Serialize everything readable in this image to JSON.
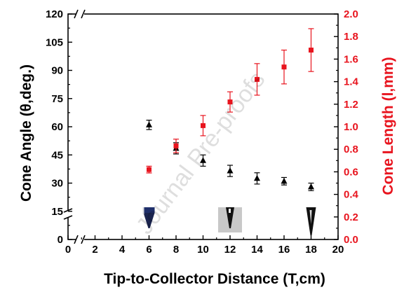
{
  "chart_data": {
    "type": "scatter",
    "xlabel": "Tip-to-Collector Distance (T,cm)",
    "ylabel_left": "Cone Angle (θ,deg.)",
    "ylabel_right": "Cone Length (l,mm)",
    "xlim": [
      0,
      20
    ],
    "x_ticks": [
      0,
      2,
      4,
      6,
      8,
      10,
      12,
      14,
      16,
      18,
      20
    ],
    "ylim_left": [
      0,
      120
    ],
    "y_ticks_left": [
      0,
      15,
      30,
      45,
      60,
      75,
      90,
      105,
      120
    ],
    "ylim_right": [
      0,
      2.0
    ],
    "y_ticks_right": [
      "0.0",
      "0.2",
      "0.4",
      "0.6",
      "0.8",
      "1.0",
      "1.2",
      "1.4",
      "1.6",
      "1.8",
      "2.0"
    ],
    "axis_break_x": true,
    "axis_break_y": true,
    "grid": false,
    "watermark": "Journal Pre-proofs",
    "colors": {
      "left_axis": "#000000",
      "right_axis": "#e8141e",
      "series_angle": "#000000",
      "series_length": "#e8141e"
    },
    "series": [
      {
        "axis": "left",
        "marker": "triangle",
        "x": [
          6,
          8,
          10,
          12,
          14,
          16,
          18
        ],
        "y": [
          61,
          48.5,
          42,
          36.5,
          32.5,
          31,
          28
        ],
        "err": [
          2.5,
          3,
          3,
          3,
          3,
          2,
          2
        ]
      },
      {
        "axis": "right",
        "marker": "square",
        "x": [
          6,
          8,
          10,
          12,
          14,
          16,
          18
        ],
        "y": [
          0.62,
          0.83,
          1.01,
          1.22,
          1.42,
          1.53,
          1.68
        ],
        "err": [
          0.03,
          0.06,
          0.09,
          0.09,
          0.14,
          0.15,
          0.19
        ]
      }
    ],
    "insets": [
      {
        "x": 6,
        "icon": "cone-droplet-image-blue"
      },
      {
        "x": 12,
        "icon": "cone-droplet-image-short"
      },
      {
        "x": 18,
        "icon": "cone-droplet-image-long"
      }
    ]
  }
}
